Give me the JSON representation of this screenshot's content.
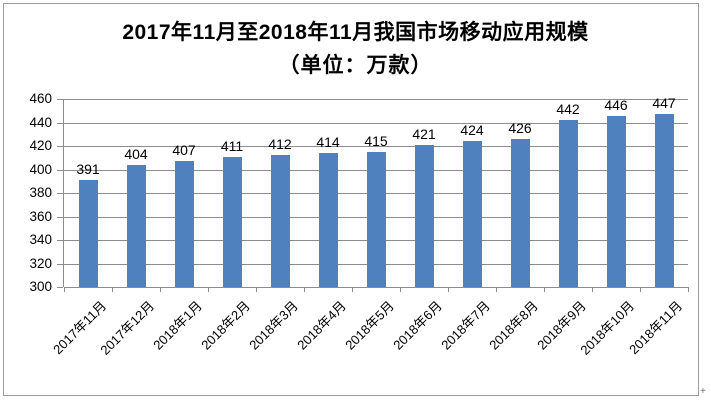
{
  "corner_mark": "+",
  "chart_data": {
    "type": "bar",
    "title": "2017年11月至2018年11月我国市场移动应用规模",
    "subtitle": "（单位：万款）",
    "categories": [
      "2017年11月",
      "2017年12月",
      "2018年1月",
      "2018年2月",
      "2018年3月",
      "2018年4月",
      "2018年5月",
      "2018年6月",
      "2018年7月",
      "2018年8月",
      "2018年9月",
      "2018年10月",
      "2018年11月"
    ],
    "values": [
      391,
      404,
      407,
      411,
      412,
      414,
      415,
      421,
      424,
      426,
      442,
      446,
      447
    ],
    "xlabel": "",
    "ylabel": "",
    "ylim": [
      300,
      460
    ],
    "yticks": [
      300,
      320,
      340,
      360,
      380,
      400,
      420,
      440,
      460
    ],
    "grid": true,
    "legend": "none",
    "data_labels": true,
    "bar_color": "#4E81BD",
    "gridline_color": "#8C8C8C",
    "axis_color": "#8C8C8C",
    "text_color": "#000000"
  }
}
